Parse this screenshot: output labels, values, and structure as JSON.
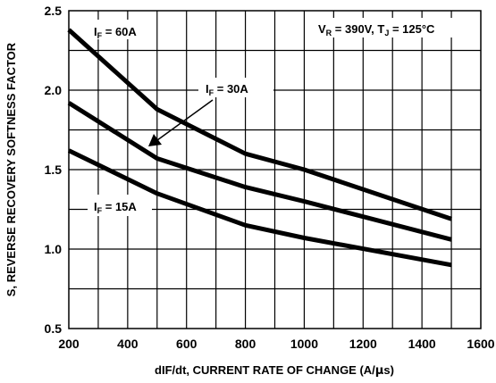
{
  "chart_data": {
    "type": "line",
    "title": "",
    "xlabel_parts": [
      "dIF/dt, CURRENT RATE OF CHANGE (A/",
      "µ",
      "s)"
    ],
    "ylabel": "S, REVERSE RECOVERY SOFTNESS FACTOR",
    "xlim": [
      200,
      1600
    ],
    "ylim": [
      0.5,
      2.5
    ],
    "xticks": [
      200,
      400,
      600,
      800,
      1000,
      1200,
      1400,
      1600
    ],
    "yticks": [
      0.5,
      1.0,
      1.5,
      2.0,
      2.5
    ],
    "xtick_labels": [
      "200",
      "400",
      "600",
      "800",
      "1000",
      "1200",
      "1400",
      "1600"
    ],
    "ytick_labels": [
      "0.5",
      "1.0",
      "1.5",
      "2.0",
      "2.5"
    ],
    "grid": true,
    "series": [
      {
        "name": "I_F = 60A",
        "x": [
          200,
          500,
          800,
          1000,
          1500
        ],
        "y": [
          2.38,
          1.88,
          1.6,
          1.5,
          1.19
        ]
      },
      {
        "name": "I_F = 30A",
        "x": [
          200,
          500,
          800,
          1000,
          1500
        ],
        "y": [
          1.92,
          1.57,
          1.39,
          1.3,
          1.06
        ]
      },
      {
        "name": "I_F = 15A",
        "x": [
          200,
          500,
          800,
          1000,
          1500
        ],
        "y": [
          1.62,
          1.35,
          1.15,
          1.07,
          0.9
        ]
      }
    ],
    "annotations": {
      "if60": {
        "main": "I",
        "sub": "F",
        "rest": " = 60A"
      },
      "if30": {
        "main": "I",
        "sub": "F",
        "rest": " = 30A"
      },
      "if15": {
        "main": "I",
        "sub": "F",
        "rest": " = 15A"
      },
      "conditions": {
        "v": "V",
        "v_sub": "R",
        "v_rest": " = 390V, T",
        "t_sub": "J",
        "t_rest": " = 125°C"
      }
    }
  }
}
